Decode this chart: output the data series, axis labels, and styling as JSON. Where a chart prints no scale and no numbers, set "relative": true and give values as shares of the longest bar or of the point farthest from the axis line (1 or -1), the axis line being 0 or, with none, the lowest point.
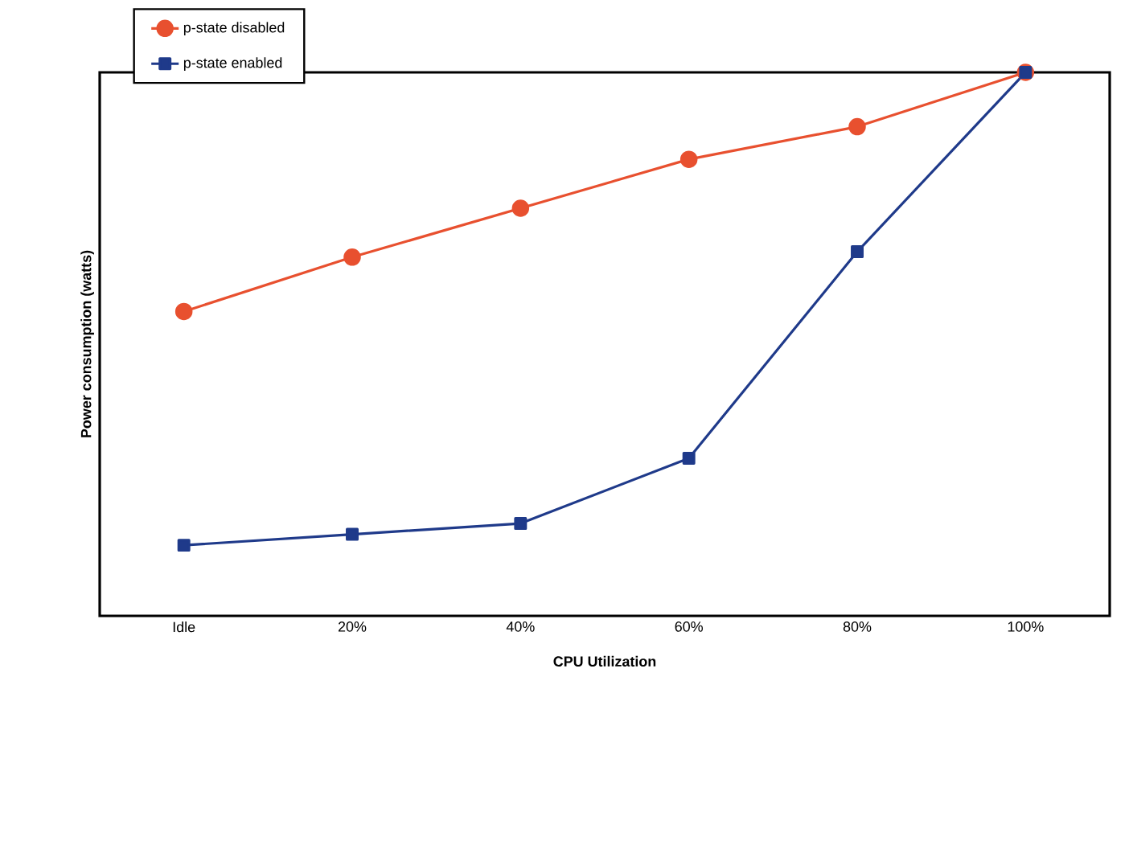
{
  "chart_data": {
    "type": "line",
    "xlabel": "CPU Utilization",
    "ylabel": "Power consumption (watts)",
    "categories": [
      "Idle",
      "20%",
      "40%",
      "60%",
      "80%",
      "100%"
    ],
    "relative": true,
    "legend": "top left",
    "line_style": "solid",
    "series": [
      {
        "name": "p-state disabled",
        "color": "#e8502f",
        "marker": "circle",
        "values": [
          0.56,
          0.66,
          0.75,
          0.84,
          0.9,
          1
        ]
      },
      {
        "name": "p-state enabled",
        "color": "#1f3a8a",
        "marker": "square",
        "values": [
          0.13,
          0.15,
          0.17,
          0.29,
          0.67,
          1
        ]
      }
    ]
  }
}
